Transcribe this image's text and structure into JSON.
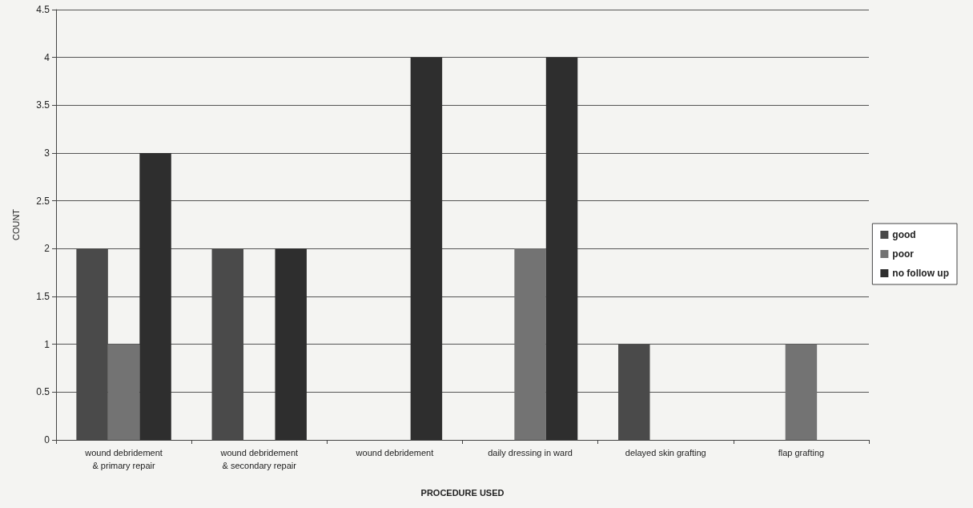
{
  "chart_data": {
    "type": "bar",
    "xlabel": "PROCEDURE USED",
    "ylabel": "COUNT",
    "categories": [
      "wound debridement\n& primary repair",
      "wound debridement\n& secondary repair",
      "wound debridement",
      "daily dressing in ward",
      "delayed skin grafting",
      "flap grafting"
    ],
    "series": [
      {
        "name": "good",
        "color": "#4a4a4a",
        "values": [
          2,
          2,
          0,
          0,
          1,
          0
        ]
      },
      {
        "name": "poor",
        "color": "#737373",
        "values": [
          1,
          0,
          0,
          2,
          0,
          1
        ]
      },
      {
        "name": "no follow up",
        "color": "#2e2e2e",
        "values": [
          3,
          2,
          4,
          4,
          0,
          0
        ]
      }
    ],
    "ylim": [
      0,
      4.5
    ],
    "yticks": [
      0,
      0.5,
      1,
      1.5,
      2,
      2.5,
      3,
      3.5,
      4,
      4.5
    ],
    "grid": "y",
    "legend": "right"
  }
}
